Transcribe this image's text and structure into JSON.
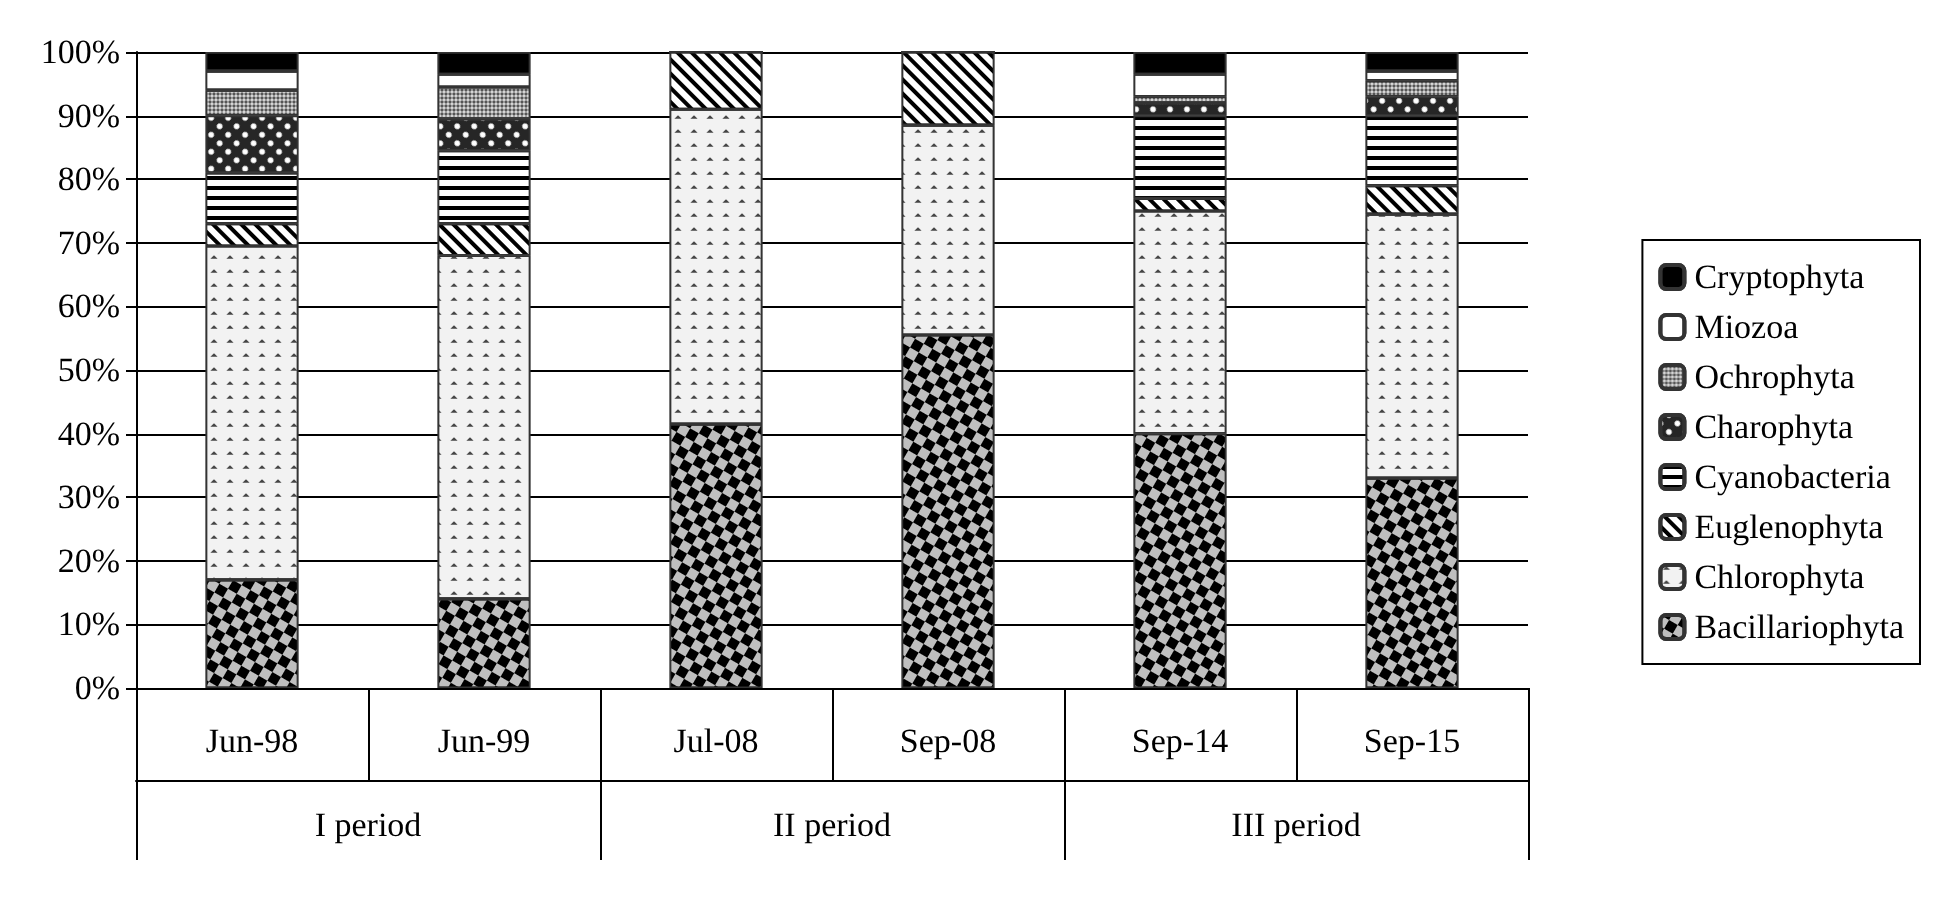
{
  "chart_data": {
    "type": "bar",
    "stacked": true,
    "categories": [
      "Jun-98",
      "Jun-99",
      "Jul-08",
      "Sep-08",
      "Sep-14",
      "Sep-15"
    ],
    "annotations": [
      "I period",
      "II period",
      "III period"
    ],
    "series": [
      {
        "name": "Bacillariophyta",
        "color": "#bfbfbf",
        "values": [
          17,
          14,
          41.5,
          55.5,
          40,
          33
        ]
      },
      {
        "name": "Chlorophyta",
        "color": "#f2f2f2",
        "values": [
          52.5,
          54,
          49.5,
          33,
          35,
          41.5
        ]
      },
      {
        "name": "Euglenophyta",
        "color": "#ffffff",
        "values": [
          3.5,
          5,
          9,
          11.5,
          2,
          4.5
        ]
      },
      {
        "name": "Cyanobacteria",
        "color": "#ffffff",
        "values": [
          8,
          11.5,
          0,
          0,
          13,
          11
        ]
      },
      {
        "name": "Charophyta",
        "color": "#262626",
        "values": [
          9,
          5,
          0,
          0,
          2,
          3
        ]
      },
      {
        "name": "Ochrophyta",
        "color": "#d9d9d9",
        "values": [
          4,
          5,
          0,
          0,
          1,
          2.5
        ]
      },
      {
        "name": "Miozoa",
        "color": "#ffffff",
        "values": [
          3,
          2,
          0,
          0,
          3.5,
          1.5
        ]
      },
      {
        "name": "Cryptophyta",
        "color": "#000000",
        "values": [
          3,
          3.5,
          0,
          0,
          3.5,
          3
        ]
      }
    ],
    "ylim": [
      0,
      100
    ],
    "yticks": [
      {
        "value": 0,
        "label": "0%"
      },
      {
        "value": 10,
        "label": "10%"
      },
      {
        "value": 20,
        "label": "20%"
      },
      {
        "value": 30,
        "label": "30%"
      },
      {
        "value": 40,
        "label": "40%"
      },
      {
        "value": 50,
        "label": "50%"
      },
      {
        "value": 60,
        "label": "60%"
      },
      {
        "value": 70,
        "label": "70%"
      },
      {
        "value": 80,
        "label": "80%"
      },
      {
        "value": 90,
        "label": "90%"
      },
      {
        "value": 100,
        "label": "100%"
      }
    ],
    "grid": "y",
    "legend": "right"
  }
}
